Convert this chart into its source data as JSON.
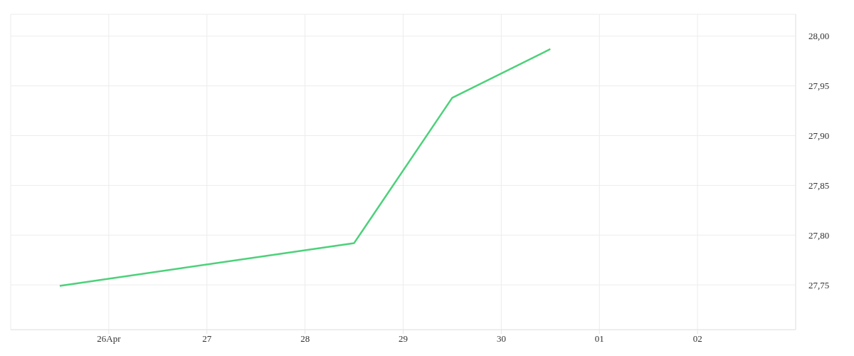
{
  "chart_data": {
    "type": "line",
    "x": [
      "--04-25T12:00",
      "--04-28T12:00",
      "--04-29T12:00",
      "--04-30T12:00"
    ],
    "series": [
      {
        "color": "#4cd17a",
        "values": [
          27.749,
          27.792,
          27.938,
          27.987
        ]
      }
    ],
    "xlim": [
      "--04-25",
      "--05-03"
    ],
    "xticks": [
      {
        "value": "--04-26",
        "label": "26Apr"
      },
      {
        "value": "--04-27",
        "label": "27"
      },
      {
        "value": "--04-28",
        "label": "28"
      },
      {
        "value": "--04-29",
        "label": "29"
      },
      {
        "value": "--04-30",
        "label": "30"
      },
      {
        "value": "--05-01",
        "label": "01"
      },
      {
        "value": "--05-02",
        "label": "02"
      }
    ],
    "ylim": [
      27.705,
      28.022
    ],
    "yticks": [
      {
        "value": 27.75,
        "label": "27,75"
      },
      {
        "value": 27.8,
        "label": "27,80"
      },
      {
        "value": 27.85,
        "label": "27,85"
      },
      {
        "value": 27.9,
        "label": "27,90"
      },
      {
        "value": 27.95,
        "label": "27,95"
      },
      {
        "value": 28.0,
        "label": "28,00"
      }
    ],
    "grid": true,
    "marker": "none",
    "line_style": "solid"
  }
}
